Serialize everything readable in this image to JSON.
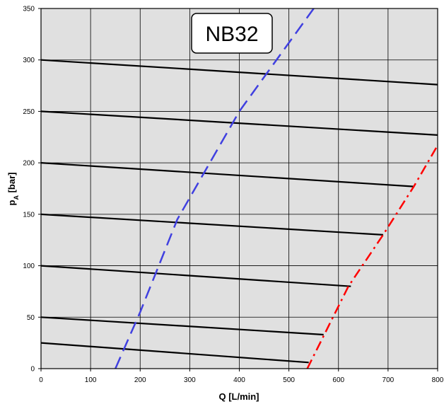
{
  "chart_data": {
    "type": "line",
    "title": "NB32",
    "xlabel": "Q [L/min]",
    "ylabel_main": "p",
    "ylabel_sub": "A",
    "ylabel_unit": " [bar]",
    "xlim": [
      0,
      800
    ],
    "ylim": [
      0,
      350
    ],
    "xticks": [
      0,
      100,
      200,
      300,
      400,
      500,
      600,
      700,
      800
    ],
    "yticks": [
      0,
      50,
      100,
      150,
      200,
      250,
      300,
      350
    ],
    "grid": true,
    "plot_background": "#e0e0e0",
    "series": [
      {
        "style": "solid",
        "color": "#000000",
        "points": [
          [
            0,
            300
          ],
          [
            800,
            276
          ]
        ]
      },
      {
        "style": "solid",
        "color": "#000000",
        "points": [
          [
            0,
            250
          ],
          [
            800,
            227
          ]
        ]
      },
      {
        "style": "solid",
        "color": "#000000",
        "points": [
          [
            0,
            200
          ],
          [
            752,
            177
          ]
        ]
      },
      {
        "style": "solid",
        "color": "#000000",
        "points": [
          [
            0,
            150
          ],
          [
            690,
            130
          ]
        ]
      },
      {
        "style": "solid",
        "color": "#000000",
        "points": [
          [
            0,
            100
          ],
          [
            625,
            80
          ]
        ]
      },
      {
        "style": "solid",
        "color": "#000000",
        "points": [
          [
            0,
            50
          ],
          [
            570,
            33
          ]
        ]
      },
      {
        "style": "solid",
        "color": "#000000",
        "points": [
          [
            0,
            25
          ],
          [
            540,
            6
          ]
        ]
      },
      {
        "style": "dashed",
        "color": "#4040e0",
        "points": [
          [
            150,
            0
          ],
          [
            200,
            55
          ],
          [
            275,
            145
          ],
          [
            400,
            250
          ],
          [
            550,
            350
          ]
        ]
      },
      {
        "style": "dashdot",
        "color": "#ff0000",
        "points": [
          [
            537,
            0
          ],
          [
            620,
            80
          ],
          [
            690,
            130
          ],
          [
            752,
            177
          ],
          [
            800,
            217
          ]
        ]
      }
    ]
  }
}
